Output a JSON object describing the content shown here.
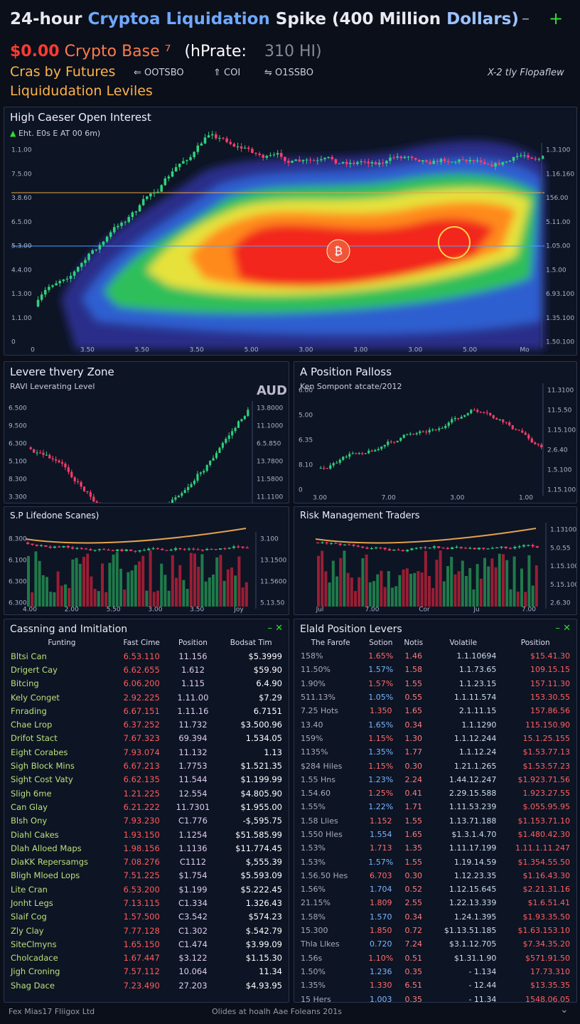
{
  "header": {
    "title_parts": [
      "24-hour",
      "Cryptoa Liquidation",
      "Spike (400 Million",
      "Dollars)"
    ],
    "price": "$0.00",
    "asset": "Crypto Base ⁷",
    "rate_label": "(hPrate:",
    "rate_value": "310 HI)",
    "sub_left": "Cras by Futures",
    "stats": [
      "OOTSBO",
      "COI",
      "O1SSBO"
    ],
    "right_note": "X-2 tly Flopaflew",
    "section_title": "Liquidudation Leviles"
  },
  "heatmap": {
    "title": "High Caeser Open Interest",
    "note": "Eht. E0s E AT 00 6m)",
    "y_left": [
      "1.1.00",
      "7.5.00",
      "3.8.60",
      "6.5.00",
      "5.3.00",
      "4.4.00",
      "1.3.00",
      "1.1.00",
      "0"
    ],
    "y_right": [
      "1.3.100",
      "1.16.160",
      "156.00",
      "5.11.00",
      "1.05.00",
      "1.5.00",
      "6.93.100",
      "1.35.100",
      "1.50.100"
    ],
    "x": [
      "0",
      "3.50",
      "5.50",
      "3.50",
      "5.00",
      "3.00",
      "3.00",
      "3.00",
      "5.00",
      "Mo"
    ]
  },
  "panels": [
    {
      "title": "Levere thvery Zone",
      "subtitle": "RAVI Leverating Level",
      "badge": "AUD",
      "y_left": [
        "6.500",
        "9.500",
        "6.300",
        "5.100",
        "8.300",
        "3.300"
      ],
      "y_right": [
        "13.8000",
        "11.1000",
        "6.5.850",
        "13.7800",
        "11.5800",
        "11.1100"
      ]
    },
    {
      "title": "A Position Palloss",
      "subtitle": "Ken Sompont atcate/2012",
      "y_left": [
        "6.00",
        "5.00",
        "6.35",
        "8.10",
        "0"
      ],
      "y_right": [
        "11.3100",
        "11.5.50",
        "1.15.100",
        "2.6.40",
        "1.5.100",
        "1.15.100"
      ],
      "x": [
        "3.00",
        "7.00",
        "3.00",
        "1.00"
      ]
    },
    {
      "title": "S.P Lifedone Scanes)",
      "y_left": [
        "8.300",
        "6.100",
        "6.300",
        "6.300"
      ],
      "y_right": [
        "3.100",
        "13.1500",
        "11.5600",
        "5.13.50"
      ],
      "x": [
        "4.00",
        "2.00",
        "5.50",
        "3.00",
        "3.50",
        "Joy"
      ]
    },
    {
      "title": "Risk Management Traders",
      "y_left": [],
      "y_right": [
        "1.13100",
        "5.0.55",
        "1.15.100",
        "5.15.100",
        "2.6.30"
      ],
      "x": [
        "Jul",
        "7.00",
        "Cor",
        "Ju",
        "7.00"
      ]
    }
  ],
  "tables": [
    {
      "title": "Cassning and Imitlation",
      "columns": [
        "Funting",
        "Fast Cime",
        "Position",
        "Bodsat Tim"
      ],
      "rows": [
        [
          "Bltsi Can",
          "6.53.110",
          "11.156",
          "$5.3999"
        ],
        [
          "Drigert Cay",
          "6.62.655",
          "1.612",
          "$59.90"
        ],
        [
          "Bitcing",
          "6.06.200",
          "1.115",
          "6.4.90"
        ],
        [
          "Kely Conget",
          "2.92.225",
          "1.11.00",
          "$7.29"
        ],
        [
          "Fnrading",
          "6.67.151",
          "1.11.16",
          "6.7151"
        ],
        [
          "Chae Lrop",
          "6.37.252",
          "11.732",
          "$3.500.96"
        ],
        [
          "Drifot Stact",
          "7.67.323",
          "69.394",
          "1.534.05"
        ],
        [
          "Eight Corabes",
          "7.93.074",
          "11.132",
          "1.13"
        ],
        [
          "Sigh Block Mins",
          "6.67.213",
          "1.7753",
          "$1.521.35"
        ],
        [
          "Sight Cost Vaty",
          "6.62.135",
          "11.544",
          "$1.199.99"
        ],
        [
          "Sligh 6me",
          "1.21.225",
          "12.554",
          "$4.805.90"
        ],
        [
          "Can Glay",
          "6.21.222",
          "11.7301",
          "$1.955.00"
        ],
        [
          "Blsh Ony",
          "7.93.230",
          "C1.776",
          "-$,595.75"
        ],
        [
          "Diahl Cakes",
          "1.93.150",
          "1.1254",
          "$51.585.99"
        ],
        [
          "Dlah Alloed Maps",
          "1.98.156",
          "1.1136",
          "$11.774.45"
        ],
        [
          "DiaKK Repersamgs",
          "7.08.276",
          "C1112",
          "$,555.39"
        ],
        [
          "Bligh Mloed Lops",
          "7.51.225",
          "$1.754",
          "$5.593.09"
        ],
        [
          "Lite Cran",
          "6.53.200",
          "$1.199",
          "$5.222.45"
        ],
        [
          "Jonht Legs",
          "7.13.115",
          "C1.334",
          "1.326.43"
        ],
        [
          "Slaif Cog",
          "1.57.500",
          "C3.542",
          "$574.23"
        ],
        [
          "Zly Clay",
          "7.77.128",
          "C1.302",
          "$.542.79"
        ],
        [
          "SiteClmyns",
          "1.65.150",
          "C1.474",
          "$3.99.09"
        ],
        [
          "Cholcadace",
          "1.67.447",
          "$3.122",
          "$1.15.30"
        ],
        [
          "Jigh Croning",
          "7.57.112",
          "10.064",
          "11.34"
        ],
        [
          "Shag Dace",
          "7.23.490",
          "27.203",
          "$4.93.95"
        ]
      ]
    },
    {
      "title": "Elald Position Levers",
      "columns": [
        "The Farofe",
        "Sotion",
        "Notis",
        "Volatile",
        "Position"
      ],
      "rows": [
        [
          "158%",
          "1.65%",
          "1.46",
          "1.1.10694",
          "$15.41.30"
        ],
        [
          "11.50%",
          "1.57%",
          "1.58",
          "1.1.73.65",
          "109.15.15"
        ],
        [
          "1.90%",
          "1.57%",
          "1.55",
          "1.1.23.15",
          "157.11.30"
        ],
        [
          "511.13%",
          "1.05%",
          "0.55",
          "1.1.11.574",
          "153.30.55"
        ],
        [
          "7.25 Hots",
          "1.350",
          "1.65",
          "2.1.11.15",
          "157.86.56"
        ],
        [
          "13.40",
          "1.65%",
          "0.34",
          "1.1.1290",
          "115.150.90"
        ],
        [
          "159%",
          "1.15%",
          "1.30",
          "1.1.12.244",
          "15.1.25.155"
        ],
        [
          "1135%",
          "1.35%",
          "1.77",
          "1.1.12.24",
          "$1.53.77.13"
        ],
        [
          "$284 Hiles",
          "1.15%",
          "0.30",
          "1.21.1.265",
          "$1.53.57.23"
        ],
        [
          "1.55 Hns",
          "1.23%",
          "2.24",
          "1.44.12.247",
          "$1.923.71.56"
        ],
        [
          "1.54.60",
          "1.25%",
          "0.41",
          "2.29.15.588",
          "1.923.27.55"
        ],
        [
          "1.55%",
          "1.22%",
          "1.71",
          "1.11.53.239",
          "$.055.95.95"
        ],
        [
          "1.58 Llies",
          "1.152",
          "1.55",
          "1.13.71.188",
          "$1.153.71.10"
        ],
        [
          "1.550 Hles",
          "1.554",
          "1.65",
          "$1.3.1.4.70",
          "$1.480.42.30"
        ],
        [
          "1.53%",
          "1.713",
          "1.35",
          "1.11.17.199",
          "1.11.1.11.247"
        ],
        [
          "1.53%",
          "1.57%",
          "1.55",
          "1.19.14.59",
          "$1.354.55.50"
        ],
        [
          "1.56.50 Hes",
          "6.703",
          "0.30",
          "1.12.23.35",
          "$1.16.43.30"
        ],
        [
          "1.56%",
          "1.704",
          "0.52",
          "1.12.15.645",
          "$2.21.31.16"
        ],
        [
          "21.15%",
          "1.809",
          "2.55",
          "1.22.13.339",
          "$1.6.51.41"
        ],
        [
          "1.58%",
          "1.570",
          "0.34",
          "1.24.1.395",
          "$1.93.35.50"
        ],
        [
          "15.300",
          "1.850",
          "0.72",
          "$1.13.51.185",
          "$1.63.153.10"
        ],
        [
          "Thla Llkes",
          "0.720",
          "7.24",
          "$3.1.12.705",
          "$7.34.35.20"
        ],
        [
          "1.56s",
          "1.10%",
          "0.51",
          "$1.31.1.90",
          "$571.91.50"
        ],
        [
          "1.50%",
          "1.236",
          "0.35",
          "- 1.134",
          "17.73.310"
        ],
        [
          "1.35%",
          "1.330",
          "6.51",
          "- 12.44",
          "$13.35.35"
        ],
        [
          "15 Hers",
          "1.003",
          "0.35",
          "- 11.34",
          "1548.06.05"
        ]
      ]
    }
  ],
  "footer": {
    "left": "Fex Mias17 Fliigox Ltd",
    "center": "Olides at hoalh Aae Foleans 201s"
  }
}
